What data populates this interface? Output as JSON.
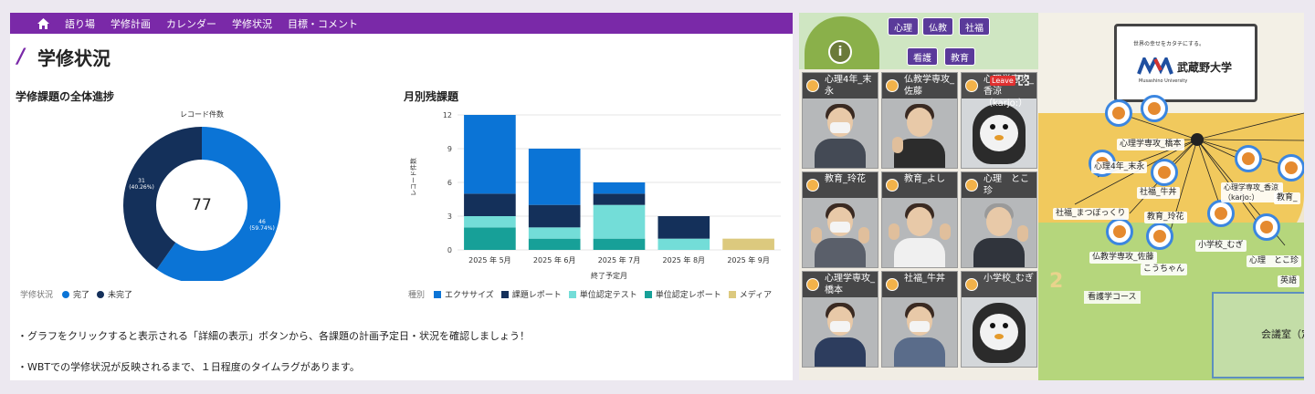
{
  "nav": {
    "items": [
      "語り場",
      "学修計画",
      "カレンダー",
      "学修状況",
      "目標・コメント"
    ]
  },
  "page_title": "学修状況",
  "progress": {
    "title": "学修課題の全体進捗",
    "subtitle": "レコード件数",
    "total": "77",
    "legend_title": "学修状況",
    "chart_data": {
      "type": "pie",
      "donut": true,
      "labels": [
        "完了",
        "未完了"
      ],
      "values": [
        46,
        31
      ],
      "percents": [
        "59.74%",
        "40.26%"
      ],
      "colors": [
        "#0b74d6",
        "#14305a"
      ],
      "center_text": "77",
      "title": "レコード件数"
    },
    "labels": {
      "done_value": "46",
      "done_pct": "(59.74%)",
      "todo_value": "31",
      "todo_pct": "(40.26%)"
    }
  },
  "monthly": {
    "title": "月別残課題",
    "ylabel": "レコード件数",
    "xlabel": "終了予定月",
    "legend_title": "種別",
    "chart_data": {
      "type": "bar",
      "stacked": true,
      "categories": [
        "2025 年 5月",
        "2025 年 6月",
        "2025 年 7月",
        "2025 年 8月",
        "2025 年 9月"
      ],
      "series": [
        {
          "name": "単位認定レポート",
          "color": "#17a098",
          "values": [
            2,
            1,
            1,
            0,
            0
          ]
        },
        {
          "name": "単位認定テスト",
          "color": "#73ddd8",
          "values": [
            1,
            1,
            3,
            1,
            0
          ]
        },
        {
          "name": "課題レポート",
          "color": "#14305a",
          "values": [
            2,
            2,
            1,
            2,
            0
          ]
        },
        {
          "name": "エクササイズ",
          "color": "#0b74d6",
          "values": [
            7,
            5,
            1,
            0,
            0
          ]
        },
        {
          "name": "メディア",
          "color": "#dcc97e",
          "values": [
            0,
            0,
            0,
            0,
            1
          ]
        }
      ],
      "ylim": [
        0,
        12
      ],
      "yticks": [
        "0",
        "3",
        "6",
        "9",
        "12"
      ],
      "xlabel": "終了予定月",
      "ylabel": "レコード件数",
      "title": "月別残課題"
    },
    "legend": [
      {
        "name": "エクササイズ",
        "color": "#0b74d6"
      },
      {
        "name": "課題レポート",
        "color": "#14305a"
      },
      {
        "name": "単位認定テスト",
        "color": "#73ddd8"
      },
      {
        "name": "単位認定レポート",
        "color": "#17a098"
      },
      {
        "name": "メディア",
        "color": "#dcc97e"
      }
    ]
  },
  "notes": [
    "・グラフをクリックすると表示される「詳細の表示」ボタンから、各課題の計画予定日・状況を確認しましょう！",
    "・WBTでの学修状況が反映されるまで、１日程度のタイムラグがあります。"
  ],
  "room": {
    "tags": [
      "心理",
      "仏教",
      "社福",
      "看護",
      "教育"
    ],
    "leave": "Leave",
    "tiles": [
      {
        "name": "心理4年_末永",
        "kind": "person"
      },
      {
        "name": "仏教学専攻_佐藤",
        "kind": "person"
      },
      {
        "name": "心理学専攻_香涼（karjo:）",
        "kind": "penguin"
      },
      {
        "name": "教育_玲花",
        "kind": "person"
      },
      {
        "name": "教育_よし",
        "kind": "person"
      },
      {
        "name": "心理　とこ珍",
        "kind": "person"
      },
      {
        "name": "心理学専攻_橋本",
        "kind": "person"
      },
      {
        "name": "社福_牛丼",
        "kind": "person"
      },
      {
        "name": "小学校_むぎ",
        "kind": "penguin"
      }
    ],
    "logo": {
      "tagline": "世界の幸せをカタチにする。",
      "name": "武蔵野大学",
      "en": "Musashino University"
    },
    "map_labels": [
      "心理学専攻_橋本",
      "心理4年_末永",
      "社福_牛丼",
      "心理学専攻_香涼（karjo:）",
      "社福_まつぼっくり",
      "教育_玲花",
      "小学校_むぎ",
      "仏教学専攻_佐藤",
      "こうちゃん",
      "心理　とこ珍",
      "教育_",
      "英語"
    ],
    "course_label": "看護学コース",
    "meeting_label": "会議室（定",
    "floor_number": "2",
    "tag_colors": {
      "button": "#5a3a9a"
    }
  }
}
